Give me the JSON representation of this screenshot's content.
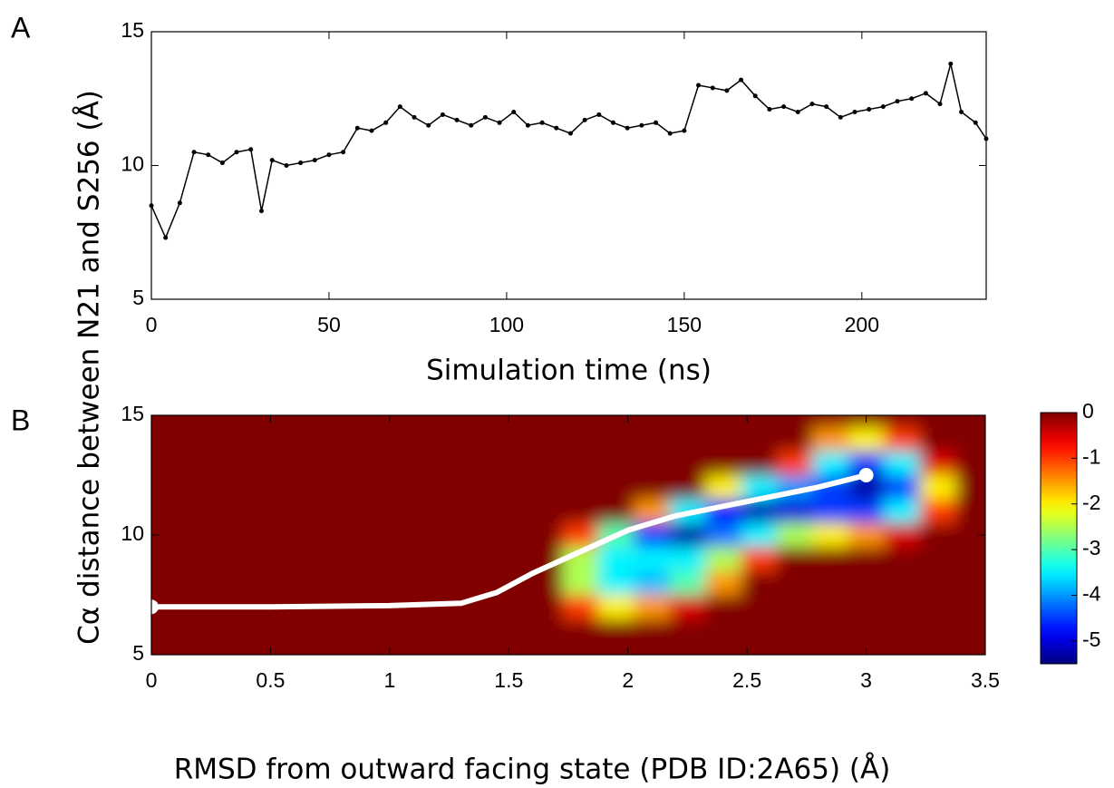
{
  "chart_data": [
    {
      "type": "line",
      "panel_label": "A",
      "xlabel": "Simulation time (ns)",
      "ylabel": "Cα distance between N21 and S256 (Å)",
      "color": "#000000",
      "x": [
        0,
        4,
        8,
        12,
        16,
        20,
        24,
        28,
        31,
        34,
        38,
        42,
        46,
        50,
        54,
        58,
        62,
        66,
        70,
        74,
        78,
        82,
        86,
        90,
        94,
        98,
        102,
        106,
        110,
        114,
        118,
        122,
        126,
        130,
        134,
        138,
        142,
        146,
        150,
        154,
        158,
        162,
        166,
        170,
        174,
        178,
        182,
        186,
        190,
        194,
        198,
        202,
        206,
        210,
        214,
        218,
        222,
        225,
        228,
        232,
        235
      ],
      "values": [
        8.5,
        7.3,
        8.6,
        10.5,
        10.4,
        10.1,
        10.5,
        10.6,
        8.3,
        10.2,
        10.0,
        10.1,
        10.2,
        10.4,
        10.5,
        11.4,
        11.3,
        11.6,
        12.2,
        11.8,
        11.5,
        11.9,
        11.7,
        11.5,
        11.8,
        11.6,
        12.0,
        11.5,
        11.6,
        11.4,
        11.2,
        11.7,
        11.9,
        11.6,
        11.4,
        11.5,
        11.6,
        11.2,
        11.3,
        13.0,
        12.9,
        12.8,
        13.2,
        12.6,
        12.1,
        12.2,
        12.0,
        12.3,
        12.2,
        11.8,
        12.0,
        12.1,
        12.2,
        12.4,
        12.5,
        12.7,
        12.3,
        13.8,
        12.0,
        11.6,
        11.0
      ],
      "xlim": [
        0,
        235
      ],
      "xticks": [
        0,
        50,
        100,
        150,
        200
      ],
      "ylim": [
        5,
        15
      ],
      "yticks": [
        5,
        10,
        15
      ]
    },
    {
      "type": "heatmap",
      "panel_label": "B",
      "xlabel": "RMSD from outward facing state (PDB ID:2A65) (Å)",
      "x": [
        1.8,
        1.95,
        2.1,
        2.25,
        2.4,
        2.55,
        2.7,
        2.85,
        3.0,
        3.15,
        3.3
      ],
      "y": [
        14,
        13,
        12,
        11,
        10,
        9,
        8,
        7
      ],
      "z": [
        [
          0,
          0,
          0,
          0,
          0,
          0,
          0,
          -1.5,
          -2,
          -1,
          0
        ],
        [
          0,
          0,
          0,
          0,
          0,
          0,
          -1,
          -3.5,
          -4.5,
          -3.5,
          -0.5
        ],
        [
          0,
          0,
          0,
          0,
          -2,
          -3.5,
          -4,
          -4.5,
          -5.3,
          -4.5,
          -2
        ],
        [
          0,
          0,
          -1.5,
          -3.5,
          -4.8,
          -5.2,
          -5,
          -4.5,
          -4.5,
          -3.5,
          -1
        ],
        [
          -1,
          -3,
          -4.5,
          -5.3,
          -4.2,
          -3.5,
          -2.5,
          -2,
          -1.5,
          -0.5,
          0
        ],
        [
          -2.5,
          -3.5,
          -3.5,
          -3.5,
          -2.5,
          -1,
          0,
          0,
          0,
          0,
          0
        ],
        [
          -2.5,
          -3.5,
          -3.8,
          -3,
          -1.5,
          0,
          0,
          0,
          0,
          0,
          0
        ],
        [
          -1,
          -2,
          -1.5,
          -0.5,
          0,
          0,
          0,
          0,
          0,
          0,
          0
        ]
      ],
      "clim": [
        -5.5,
        0
      ],
      "cticks": [
        0,
        -1,
        -2,
        -3,
        -4,
        -5
      ],
      "path": {
        "x": [
          0,
          0.5,
          1,
          1.3,
          1.45,
          1.6,
          1.8,
          2.0,
          2.2,
          2.5,
          2.8,
          3.0
        ],
        "values": [
          7,
          7,
          7.05,
          7.15,
          7.6,
          8.4,
          9.3,
          10.2,
          10.8,
          11.4,
          12.0,
          12.5
        ],
        "color": "#ffffff"
      },
      "xlim": [
        0,
        3.5
      ],
      "xticks": [
        0,
        0.5,
        1,
        1.5,
        2,
        2.5,
        3,
        3.5
      ],
      "ylim": [
        5,
        15
      ],
      "yticks": [
        5,
        10,
        15
      ]
    }
  ]
}
